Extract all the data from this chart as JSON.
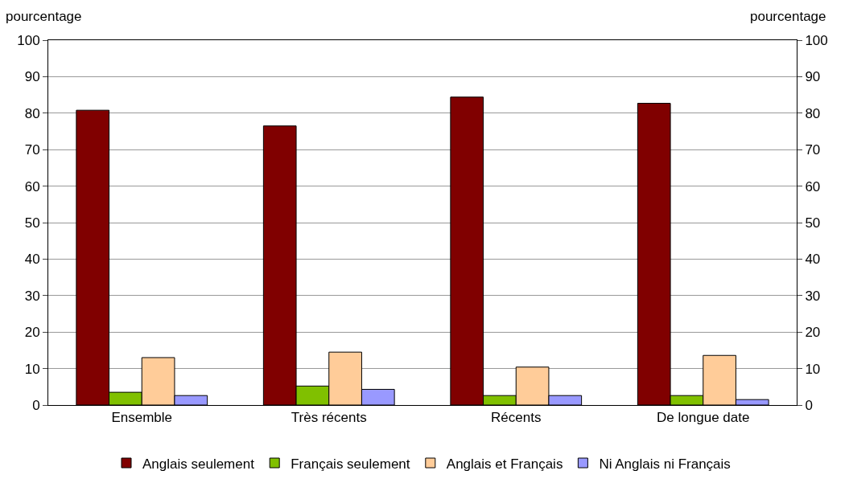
{
  "chart_data": {
    "type": "bar",
    "ylabel": "pourcentage",
    "y2label": "pourcentage",
    "categories": [
      "Ensemble",
      "Très récents",
      "Récents",
      "De longue date"
    ],
    "series": [
      {
        "name": "Anglais seulement",
        "color": "#800000",
        "values": [
          80.8,
          76.5,
          84.4,
          82.7
        ]
      },
      {
        "name": "Français seulement",
        "color": "#80c000",
        "values": [
          3.5,
          5.2,
          2.6,
          2.6
        ]
      },
      {
        "name": "Anglais et Français",
        "color": "#ffcc99",
        "values": [
          13.0,
          14.5,
          10.4,
          13.6
        ]
      },
      {
        "name": "Ni Anglais ni Français",
        "color": "#9999ff",
        "values": [
          2.6,
          4.3,
          2.6,
          1.5
        ]
      }
    ],
    "ylim": [
      0,
      100
    ],
    "yticks": [
      0,
      10,
      20,
      30,
      40,
      50,
      60,
      70,
      80,
      90,
      100
    ],
    "y2lim": [
      0,
      100
    ],
    "y2ticks": [
      0,
      10,
      20,
      30,
      40,
      50,
      60,
      70,
      80,
      90,
      100
    ],
    "grid": "y",
    "legend": "bottom"
  }
}
